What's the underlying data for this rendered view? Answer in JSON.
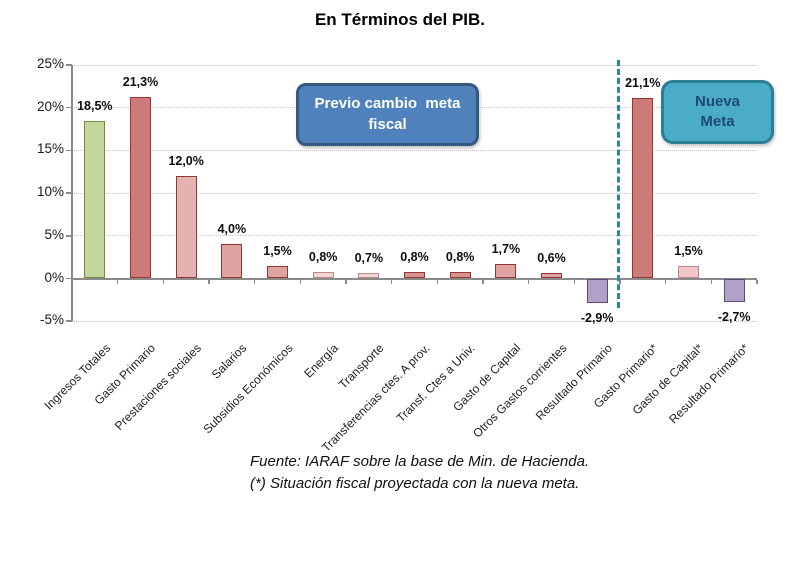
{
  "title": "En Términos del PIB.",
  "annotations": {
    "previo_box_label": "Previo cambio  meta\nfiscal",
    "previo_fill": "#4f81bd",
    "previo_border": "#36597f",
    "nueva_box_label": "Nueva\nMeta",
    "nueva_fill": "#4bacc6",
    "nueva_border": "#2e7d97",
    "nueva_text_color": "#1f497d"
  },
  "footer": {
    "line1": "Fuente: IARAF sobre la base de Min. de Hacienda.",
    "line2": "(*) Situación fiscal proyectada con la nueva meta."
  },
  "chart_data": {
    "type": "bar",
    "title": "En Términos del PIB.",
    "xlabel": "",
    "ylabel": "",
    "ylim": [
      -5,
      25
    ],
    "grid": "horizontal-dotted",
    "legend": "none",
    "axis_color": "#8a8a8a",
    "grid_color": "#c3c3c3",
    "divider_color": "#31859c",
    "divider_after_index": 11,
    "yticks": [
      {
        "v": 25,
        "label": "25%"
      },
      {
        "v": 20,
        "label": "20%"
      },
      {
        "v": 15,
        "label": "15%"
      },
      {
        "v": 10,
        "label": "10%"
      },
      {
        "v": 5,
        "label": "5%"
      },
      {
        "v": 0,
        "label": "0%"
      },
      {
        "v": -5,
        "label": "-5%"
      }
    ],
    "bars": [
      {
        "category": "Ingresos Totales",
        "value": 18.5,
        "value_label": "18,5%",
        "fill": "#c3d69b",
        "stroke": "#75893d"
      },
      {
        "category": "Gasto Primario",
        "value": 21.3,
        "value_label": "21,3%",
        "fill": "#cd7a78",
        "stroke": "#943634"
      },
      {
        "category": "Prestaciones sociales",
        "value": 12.0,
        "value_label": "12,0%",
        "fill": "#e4b2b1",
        "stroke": "#943634"
      },
      {
        "category": "Salarios",
        "value": 4.0,
        "value_label": "4,0%",
        "fill": "#dfa3a2",
        "stroke": "#943634"
      },
      {
        "category": "Subsidios Económicos",
        "value": 1.5,
        "value_label": "1,5%",
        "fill": "#dfa3a2",
        "stroke": "#943634"
      },
      {
        "category": "Energía",
        "value": 0.8,
        "value_label": "0,8%",
        "fill": "#f1d6d5",
        "stroke": "#bb8a89"
      },
      {
        "category": "Transporte",
        "value": 0.7,
        "value_label": "0,7%",
        "fill": "#f1d6d5",
        "stroke": "#bb8a89"
      },
      {
        "category": "Transferencias ctes. A prov.",
        "value": 0.8,
        "value_label": "0,8%",
        "fill": "#d59392",
        "stroke": "#943634"
      },
      {
        "category": "Transf. Ctes a Univ.",
        "value": 0.8,
        "value_label": "0,8%",
        "fill": "#d59392",
        "stroke": "#943634"
      },
      {
        "category": "Gasto de Capital",
        "value": 1.7,
        "value_label": "1,7%",
        "fill": "#dfa3a2",
        "stroke": "#943634"
      },
      {
        "category": "Otros Gastos corrientes",
        "value": 0.6,
        "value_label": "0,6%",
        "fill": "#dfa3a2",
        "stroke": "#943634"
      },
      {
        "category": "Resultado Primario",
        "value": -2.9,
        "value_label": "-2,9%",
        "fill": "#b2a1c7",
        "stroke": "#5f497a"
      },
      {
        "category": "Gasto Primario*",
        "value": 21.1,
        "value_label": "21,1%",
        "fill": "#cd7a78",
        "stroke": "#943634"
      },
      {
        "category": "Gasto de Capital*",
        "value": 1.5,
        "value_label": "1,5%",
        "fill": "#efc7c6",
        "stroke": "#bb8a89"
      },
      {
        "category": "Resultado Primario*",
        "value": -2.7,
        "value_label": "-2,7%",
        "fill": "#b2a1c7",
        "stroke": "#5f497a"
      }
    ]
  }
}
